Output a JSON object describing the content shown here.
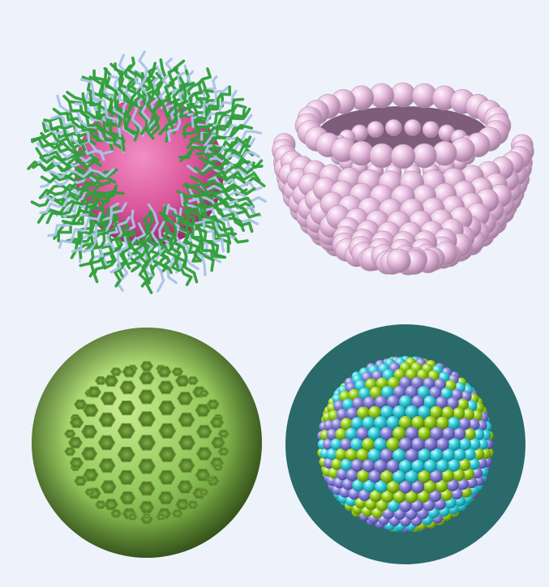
{
  "background": "#eef3fb",
  "panels": [
    {
      "id": "micelle",
      "kind": "polymer-micelle",
      "colors": {
        "core": "#d9559a",
        "chainA": "#2f9e3a",
        "chainB": "#a9c2e6"
      }
    },
    {
      "id": "vesicle",
      "kind": "cut-away-bead-vesicle",
      "colors": {
        "bead": "#e8bfe0",
        "beadShade": "#b98fb2",
        "linker": "#cfe6d8"
      }
    },
    {
      "id": "cage",
      "kind": "hexagonal-cage-sphere",
      "colors": {
        "frame": "#9bcc5f",
        "frameShade": "#5f8c2d"
      }
    },
    {
      "id": "nanoparticle",
      "kind": "mixed-bead-sphere",
      "colors": {
        "a": "#38d3e0",
        "b": "#9bd31e",
        "c": "#8c86dc"
      }
    }
  ]
}
